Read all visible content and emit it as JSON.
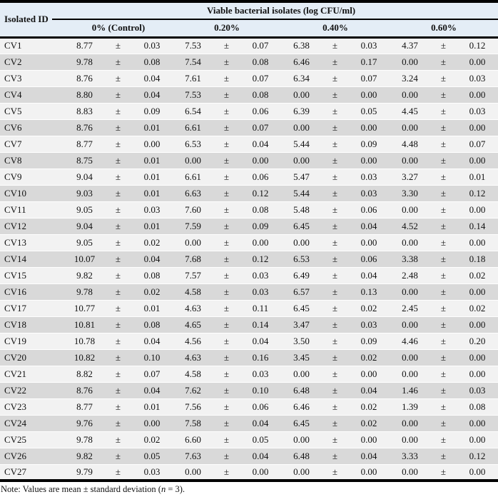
{
  "table": {
    "id_header": "Isolated ID",
    "spanner_header": "Viable bacterial isolates (log CFU/ml)",
    "group_headers": [
      "0% (Control)",
      "0.20%",
      "0.40%",
      "0.60%"
    ],
    "pm_symbol": "±",
    "rows": [
      {
        "id": "CV1",
        "values": [
          [
            "8.77",
            "0.03"
          ],
          [
            "7.53",
            "0.07"
          ],
          [
            "6.38",
            "0.03"
          ],
          [
            "4.37",
            "0.12"
          ]
        ]
      },
      {
        "id": "CV2",
        "values": [
          [
            "9.78",
            "0.08"
          ],
          [
            "7.54",
            "0.08"
          ],
          [
            "6.46",
            "0.17"
          ],
          [
            "0.00",
            "0.00"
          ]
        ]
      },
      {
        "id": "CV3",
        "values": [
          [
            "8.76",
            "0.04"
          ],
          [
            "7.61",
            "0.07"
          ],
          [
            "6.34",
            "0.07"
          ],
          [
            "3.24",
            "0.03"
          ]
        ]
      },
      {
        "id": "CV4",
        "values": [
          [
            "8.80",
            "0.04"
          ],
          [
            "7.53",
            "0.08"
          ],
          [
            "0.00",
            "0.00"
          ],
          [
            "0.00",
            "0.00"
          ]
        ]
      },
      {
        "id": "CV5",
        "values": [
          [
            "8.83",
            "0.09"
          ],
          [
            "6.54",
            "0.06"
          ],
          [
            "6.39",
            "0.05"
          ],
          [
            "4.45",
            "0.03"
          ]
        ]
      },
      {
        "id": "CV6",
        "values": [
          [
            "8.76",
            "0.01"
          ],
          [
            "6.61",
            "0.07"
          ],
          [
            "0.00",
            "0.00"
          ],
          [
            "0.00",
            "0.00"
          ]
        ]
      },
      {
        "id": "CV7",
        "values": [
          [
            "8.77",
            "0.00"
          ],
          [
            "6.53",
            "0.04"
          ],
          [
            "5.44",
            "0.09"
          ],
          [
            "4.48",
            "0.07"
          ]
        ]
      },
      {
        "id": "CV8",
        "values": [
          [
            "8.75",
            "0.01"
          ],
          [
            "0.00",
            "0.00"
          ],
          [
            "0.00",
            "0.00"
          ],
          [
            "0.00",
            "0.00"
          ]
        ]
      },
      {
        "id": "CV9",
        "values": [
          [
            "9.04",
            "0.01"
          ],
          [
            "6.61",
            "0.06"
          ],
          [
            "5.47",
            "0.03"
          ],
          [
            "3.27",
            "0.01"
          ]
        ]
      },
      {
        "id": "CV10",
        "values": [
          [
            "9.03",
            "0.01"
          ],
          [
            "6.63",
            "0.12"
          ],
          [
            "5.44",
            "0.03"
          ],
          [
            "3.30",
            "0.12"
          ]
        ]
      },
      {
        "id": "CV11",
        "values": [
          [
            "9.05",
            "0.03"
          ],
          [
            "7.60",
            "0.08"
          ],
          [
            "5.48",
            "0.06"
          ],
          [
            "0.00",
            "0.00"
          ]
        ]
      },
      {
        "id": "CV12",
        "values": [
          [
            "9.04",
            "0.01"
          ],
          [
            "7.59",
            "0.09"
          ],
          [
            "6.45",
            "0.04"
          ],
          [
            "4.52",
            "0.14"
          ]
        ]
      },
      {
        "id": "CV13",
        "values": [
          [
            "9.05",
            "0.02"
          ],
          [
            "0.00",
            "0.00"
          ],
          [
            "0.00",
            "0.00"
          ],
          [
            "0.00",
            "0.00"
          ]
        ]
      },
      {
        "id": "CV14",
        "values": [
          [
            "10.07",
            "0.04"
          ],
          [
            "7.68",
            "0.12"
          ],
          [
            "6.53",
            "0.06"
          ],
          [
            "3.38",
            "0.18"
          ]
        ]
      },
      {
        "id": "CV15",
        "values": [
          [
            "9.82",
            "0.08"
          ],
          [
            "7.57",
            "0.03"
          ],
          [
            "6.49",
            "0.04"
          ],
          [
            "2.48",
            "0.02"
          ]
        ]
      },
      {
        "id": "CV16",
        "values": [
          [
            "9.78",
            "0.02"
          ],
          [
            "4.58",
            "0.03"
          ],
          [
            "6.57",
            "0.13"
          ],
          [
            "0.00",
            "0.00"
          ]
        ]
      },
      {
        "id": "CV17",
        "values": [
          [
            "10.77",
            "0.01"
          ],
          [
            "4.63",
            "0.11"
          ],
          [
            "6.45",
            "0.02"
          ],
          [
            "2.45",
            "0.02"
          ]
        ]
      },
      {
        "id": "CV18",
        "values": [
          [
            "10.81",
            "0.08"
          ],
          [
            "4.65",
            "0.14"
          ],
          [
            "3.47",
            "0.03"
          ],
          [
            "0.00",
            "0.00"
          ]
        ]
      },
      {
        "id": "CV19",
        "values": [
          [
            "10.78",
            "0.04"
          ],
          [
            "4.56",
            "0.04"
          ],
          [
            "3.50",
            "0.09"
          ],
          [
            "4.46",
            "0.20"
          ]
        ]
      },
      {
        "id": "CV20",
        "values": [
          [
            "10.82",
            "0.10"
          ],
          [
            "4.63",
            "0.16"
          ],
          [
            "3.45",
            "0.02"
          ],
          [
            "0.00",
            "0.00"
          ]
        ]
      },
      {
        "id": "CV21",
        "values": [
          [
            "8.82",
            "0.07"
          ],
          [
            "4.58",
            "0.03"
          ],
          [
            "0.00",
            "0.00"
          ],
          [
            "0.00",
            "0.00"
          ]
        ]
      },
      {
        "id": "CV22",
        "values": [
          [
            "8.76",
            "0.04"
          ],
          [
            "7.62",
            "0.10"
          ],
          [
            "6.48",
            "0.04"
          ],
          [
            "1.46",
            "0.03"
          ]
        ]
      },
      {
        "id": "CV23",
        "values": [
          [
            "8.77",
            "0.01"
          ],
          [
            "7.56",
            "0.06"
          ],
          [
            "6.46",
            "0.02"
          ],
          [
            "1.39",
            "0.08"
          ]
        ]
      },
      {
        "id": "CV24",
        "values": [
          [
            "9.76",
            "0.00"
          ],
          [
            "7.58",
            "0.04"
          ],
          [
            "6.45",
            "0.02"
          ],
          [
            "0.00",
            "0.00"
          ]
        ]
      },
      {
        "id": "CV25",
        "values": [
          [
            "9.78",
            "0.02"
          ],
          [
            "6.60",
            "0.05"
          ],
          [
            "0.00",
            "0.00"
          ],
          [
            "0.00",
            "0.00"
          ]
        ]
      },
      {
        "id": "CV26",
        "values": [
          [
            "9.82",
            "0.05"
          ],
          [
            "7.63",
            "0.04"
          ],
          [
            "6.48",
            "0.04"
          ],
          [
            "3.33",
            "0.12"
          ]
        ]
      },
      {
        "id": "CV27",
        "values": [
          [
            "9.79",
            "0.03"
          ],
          [
            "0.00",
            "0.00"
          ],
          [
            "0.00",
            "0.00"
          ],
          [
            "0.00",
            "0.00"
          ]
        ]
      }
    ]
  },
  "note": {
    "prefix": "Note: Values are mean ± standard deviation (",
    "n": "n",
    "suffix": " = 3)."
  },
  "colors": {
    "header_bg": "#e4edf6",
    "row_light": "#f2f2f2",
    "row_dark": "#d9d9d9",
    "border": "#000000"
  }
}
